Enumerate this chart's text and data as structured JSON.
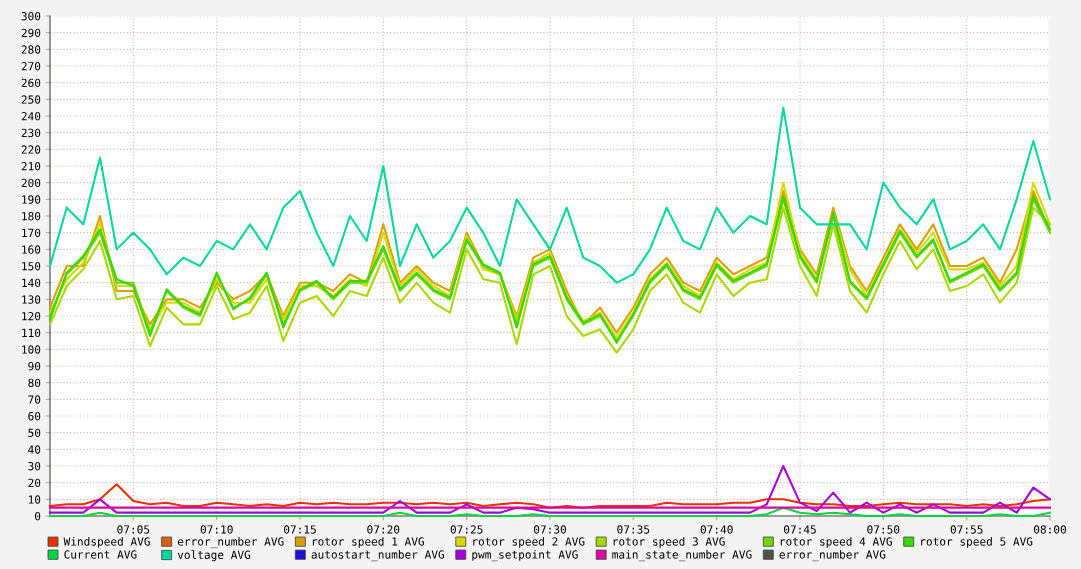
{
  "chart_data": {
    "type": "line",
    "x": [
      7.0,
      7.0167,
      7.0333,
      7.05,
      7.0667,
      7.0833,
      7.1,
      7.1167,
      7.1333,
      7.15,
      7.1667,
      7.1833,
      7.2,
      7.2167,
      7.2333,
      7.25,
      7.2667,
      7.2833,
      7.3,
      7.3167,
      7.3333,
      7.35,
      7.3667,
      7.3833,
      7.4,
      7.4167,
      7.4333,
      7.45,
      7.4667,
      7.4833,
      7.5,
      7.5167,
      7.5333,
      7.55,
      7.5667,
      7.5833,
      7.6,
      7.6167,
      7.6333,
      7.65,
      7.6667,
      7.6833,
      7.7,
      7.7167,
      7.7333,
      7.75,
      7.7667,
      7.7833,
      7.8,
      7.8167,
      7.8333,
      7.85,
      7.8667,
      7.8833,
      7.9,
      7.9167,
      7.9333,
      7.95,
      7.9667,
      7.9833,
      8.0
    ],
    "xlim": [
      7.0,
      8.0
    ],
    "xticks": [
      {
        "value": 7.0833,
        "label": "07:05"
      },
      {
        "value": 7.1667,
        "label": "07:10"
      },
      {
        "value": 7.25,
        "label": "07:15"
      },
      {
        "value": 7.3333,
        "label": "07:20"
      },
      {
        "value": 7.4167,
        "label": "07:25"
      },
      {
        "value": 7.5,
        "label": "07:30"
      },
      {
        "value": 7.5833,
        "label": "07:35"
      },
      {
        "value": 7.6667,
        "label": "07:40"
      },
      {
        "value": 7.75,
        "label": "07:45"
      },
      {
        "value": 7.8333,
        "label": "07:50"
      },
      {
        "value": 7.9167,
        "label": "07:55"
      },
      {
        "value": 8.0,
        "label": "08:00"
      }
    ],
    "ylim": [
      0,
      300
    ],
    "yticks": [
      0,
      10,
      20,
      30,
      40,
      50,
      60,
      70,
      80,
      90,
      100,
      110,
      120,
      130,
      140,
      150,
      160,
      170,
      180,
      190,
      200,
      210,
      220,
      230,
      240,
      250,
      260,
      270,
      280,
      290,
      300
    ],
    "grid": true,
    "legend": "bottom",
    "marker": "none",
    "line_style": "solid",
    "series": [
      {
        "name": "Windspeed AVG",
        "color": "#e83000",
        "values": [
          6,
          7,
          7,
          10,
          19,
          9,
          7,
          8,
          6,
          6,
          8,
          7,
          6,
          7,
          6,
          8,
          7,
          8,
          7,
          7,
          8,
          8,
          7,
          8,
          7,
          8,
          6,
          7,
          8,
          7,
          5,
          6,
          5,
          6,
          6,
          6,
          6,
          8,
          7,
          7,
          7,
          8,
          8,
          10,
          10,
          8,
          7,
          7,
          6,
          6,
          7,
          8,
          7,
          7,
          7,
          6,
          7,
          6,
          7,
          9,
          10
        ]
      },
      {
        "name": "error_number AVG",
        "color": "#e06010",
        "values": [
          null,
          null,
          null,
          null,
          null,
          null,
          null,
          null,
          null,
          null,
          null,
          null,
          null,
          null,
          null,
          null,
          null,
          null,
          null,
          null,
          null,
          null,
          null,
          null,
          null,
          null,
          null,
          null,
          null,
          null,
          null,
          null,
          null,
          null,
          null,
          null,
          null,
          null,
          null,
          null,
          null,
          null,
          null,
          null,
          null,
          null,
          null,
          null,
          null,
          null,
          null,
          null,
          null,
          null,
          null,
          null,
          null,
          null,
          null,
          null,
          null
        ]
      },
      {
        "name": "rotor speed 1 AVG",
        "color": "#d8a000",
        "values": [
          125,
          150,
          150,
          180,
          135,
          135,
          115,
          130,
          130,
          125,
          140,
          130,
          135,
          145,
          120,
          140,
          140,
          135,
          145,
          140,
          175,
          140,
          150,
          140,
          135,
          170,
          150,
          145,
          120,
          155,
          160,
          135,
          115,
          125,
          110,
          125,
          145,
          155,
          140,
          135,
          155,
          145,
          150,
          155,
          195,
          160,
          145,
          185,
          150,
          135,
          155,
          175,
          160,
          175,
          150,
          150,
          155,
          140,
          160,
          195,
          170
        ]
      },
      {
        "name": "rotor speed 2 AVG",
        "color": "#d8d800",
        "values": [
          122,
          142,
          152,
          176,
          138,
          138,
          112,
          128,
          128,
          122,
          142,
          128,
          128,
          142,
          118,
          138,
          138,
          132,
          142,
          138,
          170,
          138,
          148,
          138,
          132,
          168,
          148,
          145,
          118,
          152,
          158,
          132,
          117,
          122,
          107,
          122,
          142,
          152,
          138,
          132,
          152,
          142,
          148,
          152,
          200,
          158,
          142,
          182,
          148,
          132,
          152,
          172,
          158,
          170,
          148,
          148,
          152,
          138,
          150,
          200,
          175
        ]
      },
      {
        "name": "rotor speed 3 AVG",
        "color": "#a8d800",
        "values": [
          115,
          138,
          148,
          165,
          130,
          132,
          102,
          125,
          115,
          115,
          138,
          118,
          122,
          138,
          105,
          128,
          132,
          120,
          135,
          132,
          155,
          128,
          140,
          128,
          122,
          160,
          142,
          140,
          103,
          145,
          150,
          120,
          108,
          112,
          98,
          112,
          135,
          145,
          128,
          122,
          145,
          132,
          140,
          142,
          185,
          150,
          132,
          175,
          135,
          122,
          145,
          165,
          148,
          160,
          135,
          138,
          145,
          128,
          140,
          185,
          175
        ]
      },
      {
        "name": "rotor speed 4 AVG",
        "color": "#70d800",
        "values": [
          120,
          145,
          155,
          170,
          140,
          140,
          110,
          135,
          125,
          120,
          145,
          125,
          130,
          145,
          115,
          135,
          140,
          130,
          140,
          140,
          160,
          135,
          145,
          135,
          130,
          165,
          150,
          145,
          115,
          150,
          155,
          130,
          115,
          120,
          105,
          120,
          140,
          150,
          135,
          130,
          150,
          140,
          145,
          150,
          190,
          155,
          140,
          180,
          140,
          130,
          150,
          170,
          155,
          165,
          140,
          145,
          150,
          135,
          145,
          190,
          170
        ]
      },
      {
        "name": "rotor speed 5 AVG",
        "color": "#38d800",
        "values": [
          118,
          146,
          156,
          172,
          142,
          138,
          108,
          136,
          126,
          121,
          146,
          124,
          131,
          146,
          113,
          136,
          141,
          131,
          141,
          141,
          162,
          136,
          146,
          136,
          131,
          166,
          151,
          146,
          113,
          151,
          156,
          131,
          116,
          121,
          104,
          121,
          141,
          151,
          136,
          131,
          151,
          141,
          146,
          151,
          192,
          156,
          141,
          182,
          141,
          131,
          151,
          171,
          156,
          166,
          141,
          146,
          151,
          136,
          146,
          192,
          172
        ]
      },
      {
        "name": "Current AVG",
        "color": "#00d840",
        "values": [
          0,
          0,
          0,
          2,
          0,
          0,
          0,
          0,
          0,
          0,
          0,
          0,
          0,
          0,
          0,
          0,
          0,
          0,
          0,
          0,
          0,
          2,
          0,
          0,
          0,
          1,
          0,
          0,
          0,
          1,
          0,
          0,
          0,
          0,
          0,
          0,
          0,
          0,
          0,
          0,
          0,
          0,
          0,
          1,
          5,
          2,
          1,
          2,
          1,
          0,
          0,
          1,
          0,
          0,
          0,
          0,
          0,
          1,
          0,
          0,
          2
        ]
      },
      {
        "name": "voltage AVG",
        "color": "#00d8a0",
        "values": [
          150,
          185,
          175,
          215,
          160,
          170,
          160,
          145,
          155,
          150,
          165,
          160,
          175,
          160,
          185,
          195,
          170,
          150,
          180,
          165,
          210,
          150,
          175,
          155,
          165,
          185,
          170,
          150,
          190,
          175,
          160,
          185,
          155,
          150,
          140,
          145,
          160,
          185,
          165,
          160,
          185,
          170,
          180,
          175,
          245,
          185,
          175,
          175,
          175,
          160,
          200,
          185,
          175,
          190,
          160,
          165,
          175,
          160,
          190,
          225,
          190
        ]
      },
      {
        "name": "autostart_number AVG",
        "color": "#2010d8",
        "values": [
          null,
          null,
          null,
          null,
          null,
          null,
          null,
          null,
          null,
          null,
          null,
          null,
          null,
          null,
          null,
          null,
          null,
          null,
          null,
          null,
          null,
          null,
          null,
          null,
          null,
          null,
          null,
          null,
          null,
          null,
          null,
          null,
          null,
          null,
          null,
          null,
          null,
          null,
          null,
          null,
          null,
          null,
          null,
          null,
          null,
          null,
          null,
          null,
          null,
          null,
          null,
          null,
          null,
          null,
          null,
          null,
          null,
          null,
          null,
          null,
          null
        ]
      },
      {
        "name": "pwm_setpoint AVG",
        "color": "#a800d8",
        "values": [
          2,
          2,
          2,
          10,
          2,
          2,
          2,
          2,
          2,
          2,
          2,
          2,
          2,
          2,
          2,
          2,
          2,
          2,
          2,
          2,
          2,
          9,
          2,
          2,
          2,
          7,
          2,
          2,
          5,
          4,
          2,
          2,
          2,
          2,
          2,
          2,
          2,
          2,
          2,
          2,
          2,
          2,
          2,
          7,
          30,
          8,
          3,
          14,
          2,
          8,
          2,
          7,
          2,
          7,
          2,
          2,
          2,
          8,
          2,
          17,
          10
        ]
      },
      {
        "name": "main_state_number AVG",
        "color": "#e000a0",
        "values": [
          5,
          5,
          5,
          5,
          5,
          5,
          5,
          5,
          5,
          5,
          5,
          5,
          5,
          5,
          5,
          5,
          5,
          5,
          5,
          5,
          5,
          5,
          5,
          5,
          5,
          5,
          5,
          5,
          5,
          5,
          5,
          5,
          5,
          5,
          5,
          5,
          5,
          5,
          5,
          5,
          5,
          5,
          5,
          5,
          5,
          5,
          5,
          5,
          5,
          5,
          5,
          5,
          5,
          5,
          5,
          5,
          5,
          5,
          5,
          5,
          5
        ]
      },
      {
        "name": "error_number AVG",
        "color": "#505050",
        "values": [
          null,
          null,
          null,
          null,
          null,
          null,
          null,
          null,
          null,
          null,
          null,
          null,
          null,
          null,
          null,
          null,
          null,
          null,
          null,
          null,
          null,
          null,
          null,
          null,
          null,
          null,
          null,
          null,
          null,
          null,
          null,
          null,
          null,
          null,
          null,
          null,
          null,
          null,
          null,
          null,
          null,
          null,
          null,
          null,
          null,
          null,
          null,
          null,
          null,
          null,
          null,
          null,
          null,
          null,
          null,
          null,
          null,
          null,
          null,
          null,
          null
        ]
      }
    ]
  }
}
